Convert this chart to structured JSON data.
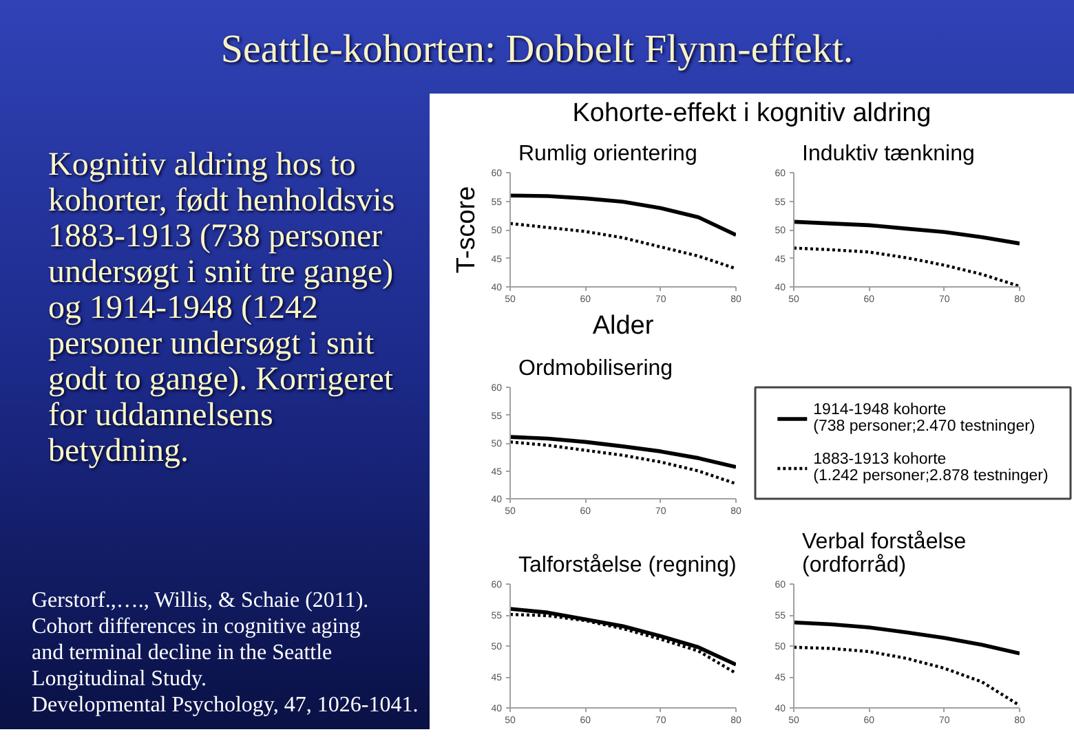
{
  "chart_data": [
    {
      "type": "other",
      "title": "Seattle-kohorten: Dobbelt Flynn-effekt.",
      "subtitle": "Kohorte-effekt i kognitiv aldring",
      "annotations": [
        "Kognitiv aldring hos to kohorter, født henholdsvis 1883-1913 (738 personer undersøgt i snit tre gange) og 1914-1948 (1242 personer undersøgt i snit godt to gange). Korrigeret for uddannelsens betydning.",
        "Gerstorf.,…., Willis, & Schaie (2011).\nCohort differences in cognitive aging\nand terminal decline in the Seattle Longitudinal Study.\nDevelopmental Psychology, 47, 1026-1041."
      ]
    },
    {
      "type": "line",
      "title": "Rumlig orientering",
      "xlabel": "Alder",
      "ylabel": "T-score",
      "x": [
        50,
        55,
        60,
        65,
        70,
        75,
        80
      ],
      "xlim": [
        50,
        80
      ],
      "ylim": [
        40,
        60
      ],
      "xticks": [
        50,
        60,
        70,
        80
      ],
      "yticks": [
        40,
        45,
        50,
        55,
        60
      ],
      "series": [
        {
          "color": "#000000",
          "line_style": "solid",
          "values": [
            56.0,
            55.9,
            55.5,
            54.9,
            53.8,
            52.2,
            49.1
          ]
        },
        {
          "color": "#000000",
          "line_style": "dotted",
          "values": [
            51.1,
            50.4,
            49.7,
            48.6,
            47.0,
            45.4,
            43.2
          ]
        }
      ]
    },
    {
      "type": "line",
      "title": "Induktiv tænkning",
      "x": [
        50,
        55,
        60,
        65,
        70,
        75,
        80
      ],
      "xlim": [
        50,
        80
      ],
      "ylim": [
        40,
        60
      ],
      "xticks": [
        50,
        60,
        70,
        80
      ],
      "yticks": [
        40,
        45,
        50,
        55,
        60
      ],
      "series": [
        {
          "color": "#000000",
          "line_style": "solid",
          "values": [
            51.4,
            51.1,
            50.8,
            50.2,
            49.6,
            48.7,
            47.6
          ]
        },
        {
          "color": "#000000",
          "line_style": "dotted",
          "values": [
            46.8,
            46.5,
            46.1,
            45.1,
            43.8,
            42.2,
            40.1
          ]
        }
      ]
    },
    {
      "type": "line",
      "title": "Ordmobilisering",
      "x": [
        50,
        55,
        60,
        65,
        70,
        75,
        80
      ],
      "xlim": [
        50,
        80
      ],
      "ylim": [
        40,
        60
      ],
      "xticks": [
        50,
        60,
        70,
        80
      ],
      "yticks": [
        40,
        45,
        50,
        55,
        60
      ],
      "legend": "right",
      "series": [
        {
          "name": "1914-1948 kohorte\n(738 personer;2.470 testninger)",
          "color": "#000000",
          "line_style": "solid",
          "values": [
            51.1,
            50.8,
            50.2,
            49.4,
            48.5,
            47.3,
            45.7
          ]
        },
        {
          "name": "1883-1913 kohorte\n(1.242 personer;2.878 testninger)",
          "color": "#000000",
          "line_style": "dotted",
          "values": [
            50.2,
            49.6,
            48.7,
            47.8,
            46.6,
            45.0,
            42.7
          ]
        }
      ]
    },
    {
      "type": "line",
      "title": "Talforståelse (regning)",
      "x": [
        50,
        55,
        60,
        65,
        70,
        75,
        80
      ],
      "xlim": [
        50,
        80
      ],
      "ylim": [
        40,
        60
      ],
      "xticks": [
        50,
        60,
        70,
        80
      ],
      "yticks": [
        40,
        45,
        50,
        55,
        60
      ],
      "series": [
        {
          "color": "#000000",
          "line_style": "solid",
          "values": [
            56.0,
            55.4,
            54.3,
            53.2,
            51.6,
            49.8,
            47.0
          ]
        },
        {
          "color": "#000000",
          "line_style": "dotted",
          "values": [
            55.1,
            54.9,
            54.1,
            52.8,
            51.1,
            49.2,
            45.6
          ]
        }
      ]
    },
    {
      "type": "line",
      "title": "Verbal forståelse\n(ordforråd)",
      "x": [
        50,
        55,
        60,
        65,
        70,
        75,
        80
      ],
      "xlim": [
        50,
        80
      ],
      "ylim": [
        40,
        60
      ],
      "xticks": [
        50,
        60,
        70,
        80
      ],
      "yticks": [
        40,
        45,
        50,
        55,
        60
      ],
      "series": [
        {
          "color": "#000000",
          "line_style": "solid",
          "values": [
            53.8,
            53.5,
            53.0,
            52.2,
            51.3,
            50.2,
            48.8
          ]
        },
        {
          "color": "#000000",
          "line_style": "dotted",
          "values": [
            49.8,
            49.6,
            49.1,
            48.0,
            46.4,
            44.2,
            40.4
          ]
        }
      ]
    }
  ]
}
